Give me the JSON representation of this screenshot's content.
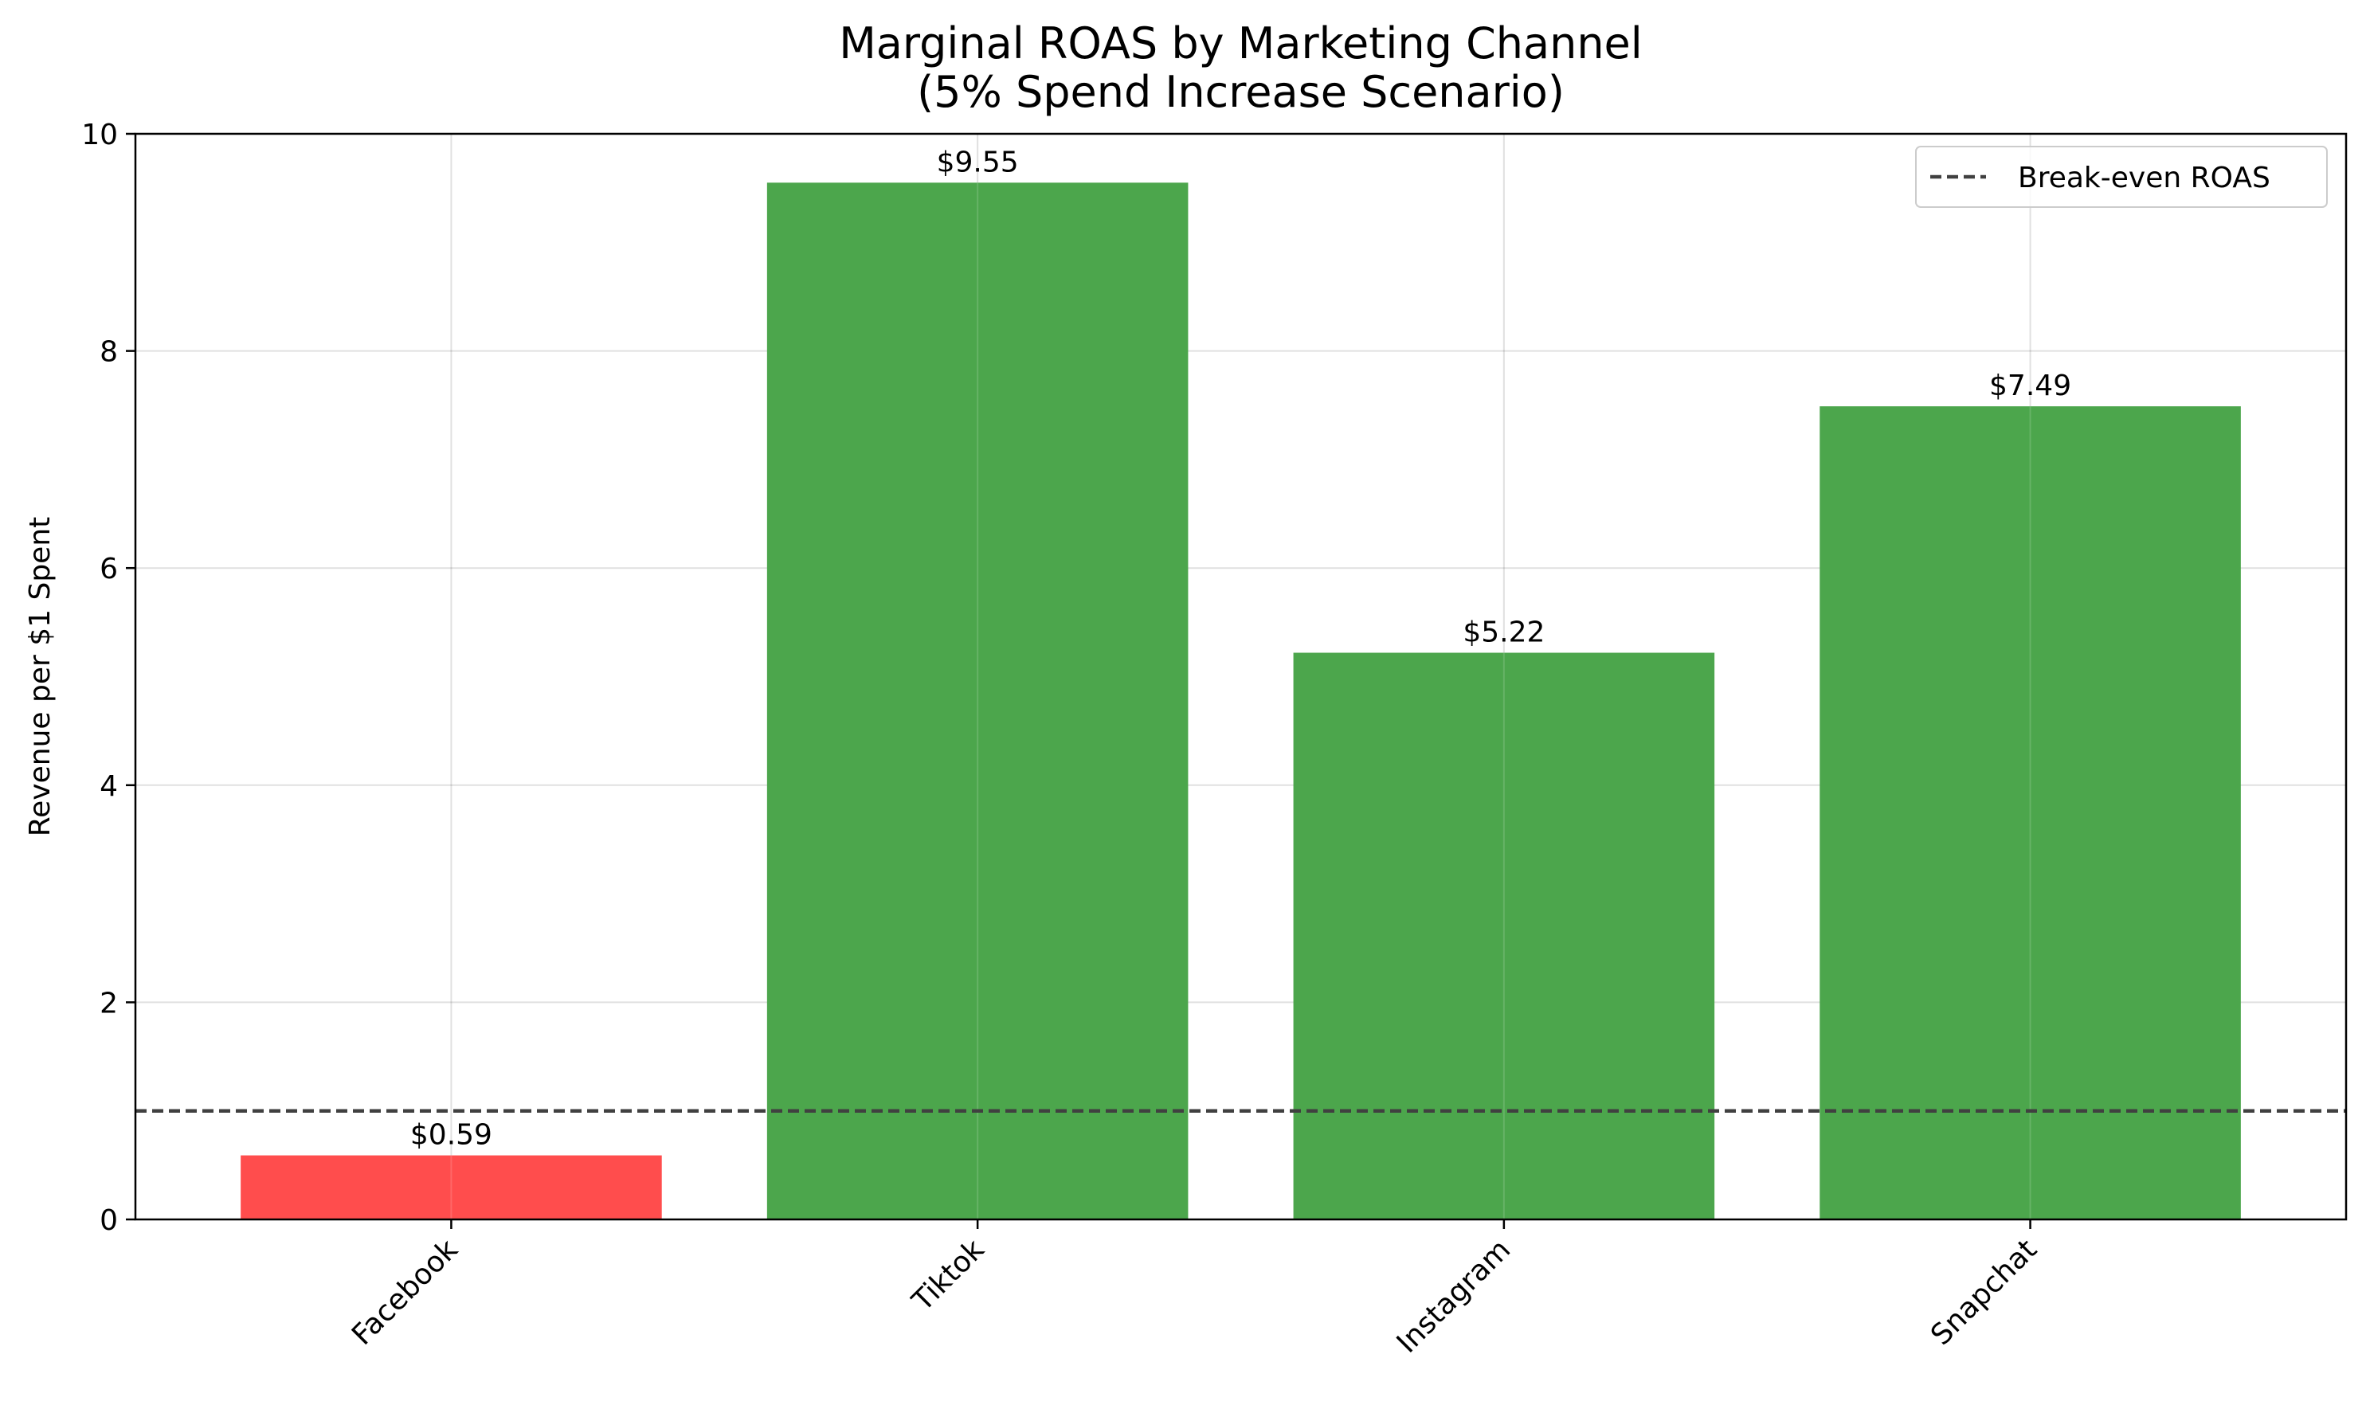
{
  "chart_data": {
    "type": "bar",
    "title_line1": "Marginal ROAS by Marketing Channel",
    "title_line2": "(5% Spend Increase Scenario)",
    "xlabel": "",
    "ylabel": "Revenue per $1 Spent",
    "categories": [
      "Facebook",
      "Tiktok",
      "Instagram",
      "Snapchat"
    ],
    "values": [
      0.59,
      9.55,
      5.22,
      7.49
    ],
    "value_labels": [
      "$0.59",
      "$9.55",
      "$5.22",
      "$7.49"
    ],
    "bar_colors": [
      "#ff4d4d",
      "#4ca64c",
      "#4ca64c",
      "#4ca64c"
    ],
    "ylim": [
      0,
      10
    ],
    "yticks": [
      0,
      2,
      4,
      6,
      8,
      10
    ],
    "xtick_rotation_deg": -45,
    "reference_line": {
      "label": "Break-even ROAS",
      "value": 1.0,
      "style": "dashed",
      "color": "#404040"
    },
    "grid": true,
    "legend_position": "top-right"
  }
}
